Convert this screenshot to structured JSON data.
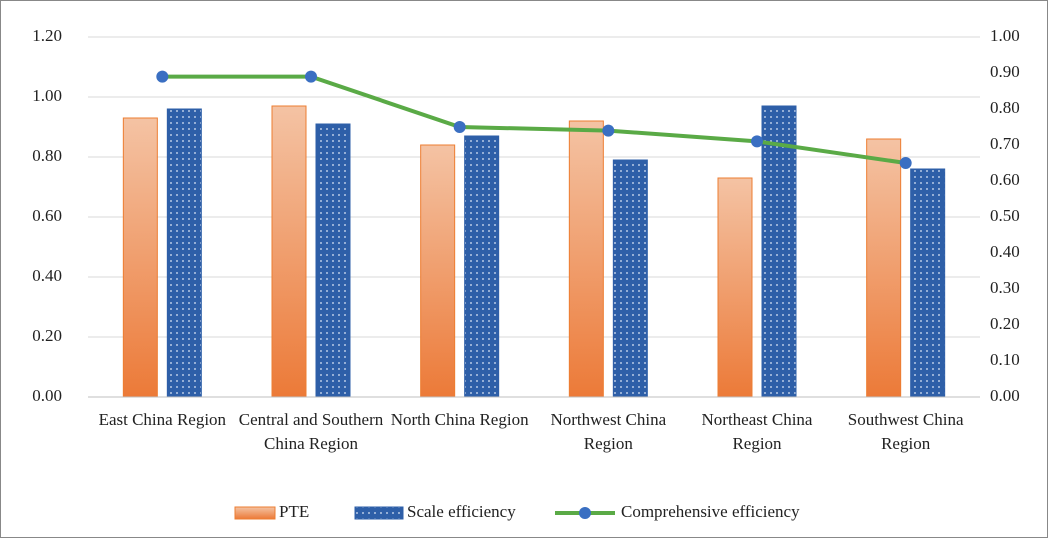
{
  "chart_data": {
    "type": "bar",
    "categories": [
      "East China Region",
      "Central and Southern China Region",
      "North China Region",
      "Northwest China Region",
      "Northeast China Region",
      "Southwest China Region"
    ],
    "series": [
      {
        "name": "PTE",
        "type": "bar",
        "color": "#ed7d31",
        "values": [
          0.93,
          0.97,
          0.84,
          0.92,
          0.73,
          0.86
        ]
      },
      {
        "name": "Scale efficiency",
        "type": "bar",
        "color": "#2e5fa8",
        "values": [
          0.96,
          0.91,
          0.87,
          0.79,
          0.97,
          0.76
        ]
      },
      {
        "name": "Comprehensive efficiency",
        "type": "line",
        "axis": "y2",
        "color": "#5aaa46",
        "marker_color": "#3a6fc2",
        "values": [
          0.89,
          0.89,
          0.75,
          0.74,
          0.71,
          0.65
        ]
      }
    ],
    "ylim": [
      0,
      1.2
    ],
    "yticks": [
      {
        "value": 0,
        "label": "0.00"
      },
      {
        "value": 0.2,
        "label": "0.20"
      },
      {
        "value": 0.4,
        "label": "0.40"
      },
      {
        "value": 0.6,
        "label": "0.60"
      },
      {
        "value": 0.8,
        "label": "0.80"
      },
      {
        "value": 1,
        "label": "1.00"
      },
      {
        "value": 1.2,
        "label": "1.20"
      }
    ],
    "y2lim": [
      0,
      1
    ],
    "y2ticks": [
      {
        "value": 0,
        "label": "0.00"
      },
      {
        "value": 0.1,
        "label": "0.10"
      },
      {
        "value": 0.2,
        "label": "0.20"
      },
      {
        "value": 0.3,
        "label": "0.30"
      },
      {
        "value": 0.4,
        "label": "0.40"
      },
      {
        "value": 0.5,
        "label": "0.50"
      },
      {
        "value": 0.6,
        "label": "0.60"
      },
      {
        "value": 0.7,
        "label": "0.70"
      },
      {
        "value": 0.8,
        "label": "0.80"
      },
      {
        "value": 0.9,
        "label": "0.90"
      },
      {
        "value": 1,
        "label": "1.00"
      }
    ],
    "grid": true,
    "legend": "bottom"
  }
}
